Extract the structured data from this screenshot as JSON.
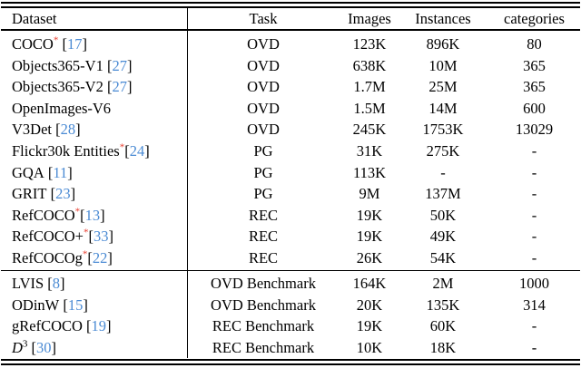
{
  "table": {
    "columns": [
      "Dataset",
      "Task",
      "Images",
      "Instances",
      "categories"
    ],
    "citation_brackets": [
      "[",
      "]"
    ],
    "footnote_marker": "*",
    "colors": {
      "star": "#e9392a",
      "citation": "#4b8bd4",
      "text": "#000000",
      "rule": "#000000"
    },
    "sections": [
      {
        "name": "training-datasets",
        "rows": [
          {
            "dataset": {
              "label": "COCO",
              "italic": false,
              "sup": "",
              "star": true,
              "cite": "17",
              "space_before_cite": true
            },
            "task": "OVD",
            "images": "123K",
            "instances": "896K",
            "categories": "80"
          },
          {
            "dataset": {
              "label": "Objects365-V1",
              "italic": false,
              "sup": "",
              "star": false,
              "cite": "27",
              "space_before_cite": true
            },
            "task": "OVD",
            "images": "638K",
            "instances": "10M",
            "categories": "365"
          },
          {
            "dataset": {
              "label": "Objects365-V2",
              "italic": false,
              "sup": "",
              "star": false,
              "cite": "27",
              "space_before_cite": true
            },
            "task": "OVD",
            "images": "1.7M",
            "instances": "25M",
            "categories": "365"
          },
          {
            "dataset": {
              "label": "OpenImages-V6",
              "italic": false,
              "sup": "",
              "star": false,
              "cite": "",
              "space_before_cite": false
            },
            "task": "OVD",
            "images": "1.5M",
            "instances": "14M",
            "categories": "600"
          },
          {
            "dataset": {
              "label": "V3Det",
              "italic": false,
              "sup": "",
              "star": false,
              "cite": "28",
              "space_before_cite": true
            },
            "task": "OVD",
            "images": "245K",
            "instances": "1753K",
            "categories": "13029"
          },
          {
            "dataset": {
              "label": "Flickr30k Entities",
              "italic": false,
              "sup": "",
              "star": true,
              "cite": "24",
              "space_before_cite": false
            },
            "task": "PG",
            "images": "31K",
            "instances": "275K",
            "categories": "-"
          },
          {
            "dataset": {
              "label": "GQA",
              "italic": false,
              "sup": "",
              "star": false,
              "cite": "11",
              "space_before_cite": true
            },
            "task": "PG",
            "images": "113K",
            "instances": "-",
            "categories": "-"
          },
          {
            "dataset": {
              "label": "GRIT",
              "italic": false,
              "sup": "",
              "star": false,
              "cite": "23",
              "space_before_cite": true
            },
            "task": "PG",
            "images": "9M",
            "instances": "137M",
            "categories": "-"
          },
          {
            "dataset": {
              "label": "RefCOCO",
              "italic": false,
              "sup": "",
              "star": true,
              "cite": "13",
              "space_before_cite": false
            },
            "task": "REC",
            "images": "19K",
            "instances": "50K",
            "categories": "-"
          },
          {
            "dataset": {
              "label": "RefCOCO+",
              "italic": false,
              "sup": "",
              "star": true,
              "cite": "33",
              "space_before_cite": false
            },
            "task": "REC",
            "images": "19K",
            "instances": "49K",
            "categories": "-"
          },
          {
            "dataset": {
              "label": "RefCOCOg",
              "italic": false,
              "sup": "",
              "star": true,
              "cite": "22",
              "space_before_cite": false
            },
            "task": "REC",
            "images": "26K",
            "instances": "54K",
            "categories": "-"
          }
        ]
      },
      {
        "name": "benchmark-datasets",
        "rows": [
          {
            "dataset": {
              "label": "LVIS",
              "italic": false,
              "sup": "",
              "star": false,
              "cite": "8",
              "space_before_cite": true
            },
            "task": "OVD Benchmark",
            "images": "164K",
            "instances": "2M",
            "categories": "1000"
          },
          {
            "dataset": {
              "label": "ODinW",
              "italic": false,
              "sup": "",
              "star": false,
              "cite": "15",
              "space_before_cite": true
            },
            "task": "OVD Benchmark",
            "images": "20K",
            "instances": "135K",
            "categories": "314"
          },
          {
            "dataset": {
              "label": "gRefCOCO",
              "italic": false,
              "sup": "",
              "star": false,
              "cite": "19",
              "space_before_cite": true
            },
            "task": "REC Benchmark",
            "images": "19K",
            "instances": "60K",
            "categories": "-"
          },
          {
            "dataset": {
              "label": "D",
              "italic": true,
              "sup": "3",
              "star": false,
              "cite": "30",
              "space_before_cite": true
            },
            "task": "REC Benchmark",
            "images": "10K",
            "instances": "18K",
            "categories": "-"
          }
        ]
      }
    ]
  }
}
